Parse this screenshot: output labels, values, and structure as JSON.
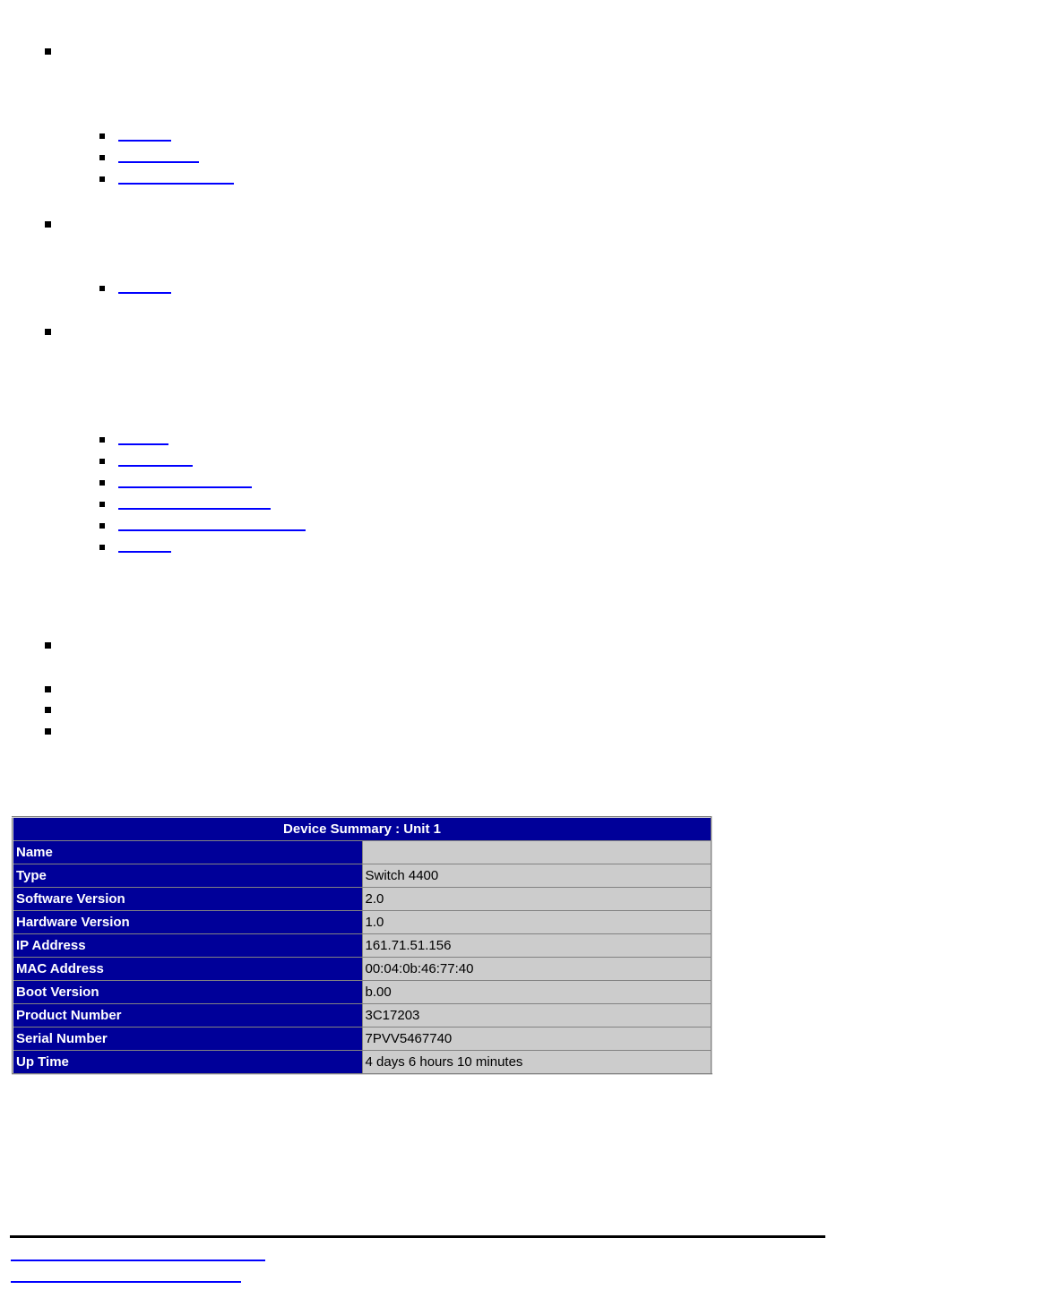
{
  "colors": {
    "link_underline": "#0000fe",
    "bullet": "#000000",
    "table_header_bg": "#000099",
    "table_header_text": "#ffffff",
    "table_value_bg": "#cccccc",
    "table_value_text": "#000000",
    "rule": "#000000",
    "page_bg": "#ffffff"
  },
  "nav": {
    "section1_links": [
      {
        "label": "",
        "underline_width": 59
      },
      {
        "label": "",
        "underline_width": 90
      },
      {
        "label": "",
        "underline_width": 129
      }
    ],
    "section2_links": [
      {
        "label": "",
        "underline_width": 59
      }
    ],
    "section3_links": [
      {
        "label": "",
        "underline_width": 56
      },
      {
        "label": "",
        "underline_width": 83
      },
      {
        "label": "",
        "underline_width": 149
      },
      {
        "label": "",
        "underline_width": 170
      },
      {
        "label": "",
        "underline_width": 209
      },
      {
        "label": "",
        "underline_width": 59
      }
    ]
  },
  "device_summary": {
    "title": "Device Summary : Unit 1",
    "rows": [
      {
        "label": "Name",
        "value": ""
      },
      {
        "label": "Type",
        "value": "Switch 4400"
      },
      {
        "label": "Software Version",
        "value": "2.0"
      },
      {
        "label": "Hardware Version",
        "value": "1.0"
      },
      {
        "label": "IP Address",
        "value": "161.71.51.156"
      },
      {
        "label": "MAC Address",
        "value": "00:04:0b:46:77:40"
      },
      {
        "label": "Boot Version",
        "value": "b.00"
      },
      {
        "label": "Product Number",
        "value": "3C17203"
      },
      {
        "label": "Serial Number",
        "value": "7PVV5467740"
      },
      {
        "label": "Up Time",
        "value": "4 days 6 hours 10 minutes"
      }
    ]
  },
  "footer": {
    "links": [
      {
        "label": "",
        "underline_width": 284
      },
      {
        "label": "",
        "underline_width": 257
      }
    ]
  }
}
